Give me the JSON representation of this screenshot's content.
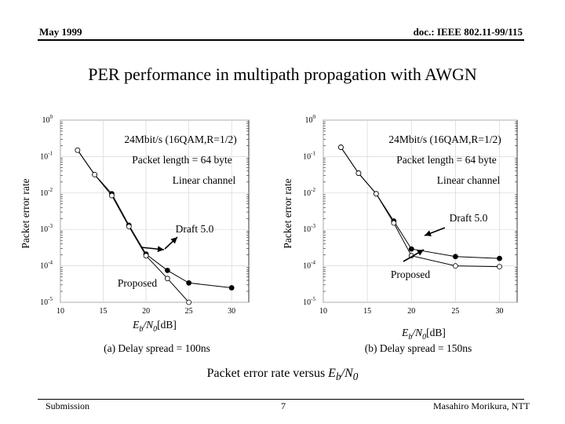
{
  "header": {
    "date": "May 1999",
    "doc": "doc.: IEEE 802.11-99/115"
  },
  "slide_title": "PER performance in multipath propagation with AWGN",
  "figure_caption": {
    "prefix": "Packet error rate versus ",
    "var": "E",
    "sub": "b",
    "mid": "/N",
    "sub2": "0"
  },
  "footer": {
    "left": "Submission",
    "center": "7",
    "right": "Masahiro Morikura, NTT"
  },
  "chart_data": [
    {
      "type": "line",
      "title": "24Mbit/s (16QAM,R=1/2)",
      "annotations": [
        "Packet length = 64 byte",
        "Linear channel",
        "Draft 5.0",
        "Proposed"
      ],
      "xlabel": "Eb/N0 [dB]",
      "ylabel": "Packet error rate",
      "caption": "(a) Delay spread = 100ns",
      "xlim": [
        10,
        32
      ],
      "ylim": [
        1e-05,
        1
      ],
      "yscale": "log",
      "xticks": [
        "10",
        "15",
        "20",
        "25",
        "30"
      ],
      "series": [
        {
          "name": "Draft 5.0",
          "marker": "filled",
          "x": [
            12,
            14,
            16,
            18,
            20,
            22.5,
            25,
            30
          ],
          "y": [
            0.15,
            0.032,
            0.0095,
            0.0013,
            0.00021,
            7.5e-05,
            3.4e-05,
            2.5e-05
          ]
        },
        {
          "name": "Proposed",
          "marker": "open",
          "x": [
            12,
            14,
            16,
            18,
            20,
            22.5,
            25
          ],
          "y": [
            0.15,
            0.032,
            0.0085,
            0.0012,
            0.00019,
            4.5e-05,
            1e-05
          ]
        }
      ]
    },
    {
      "type": "line",
      "title": "24Mbit/s (16QAM,R=1/2)",
      "annotations": [
        "Packet length = 64 byte",
        "Linear channel",
        "Draft 5.0",
        "Proposed"
      ],
      "xlabel": "Eb/N0 [dB]",
      "ylabel": "Packet error rate",
      "caption": "(b) Delay spread = 150ns",
      "xlim": [
        10,
        32
      ],
      "ylim": [
        1e-05,
        1
      ],
      "yscale": "log",
      "xticks": [
        "10",
        "15",
        "20",
        "25",
        "30"
      ],
      "series": [
        {
          "name": "Draft 5.0",
          "marker": "filled",
          "x": [
            12,
            14,
            16,
            18,
            20,
            25,
            30
          ],
          "y": [
            0.18,
            0.035,
            0.0095,
            0.0017,
            0.00029,
            0.00018,
            0.00016
          ]
        },
        {
          "name": "Proposed",
          "marker": "open",
          "x": [
            12,
            14,
            16,
            18,
            20,
            25,
            30
          ],
          "y": [
            0.18,
            0.035,
            0.0095,
            0.0015,
            0.00019,
            0.0001,
            9.5e-05
          ]
        }
      ]
    }
  ]
}
